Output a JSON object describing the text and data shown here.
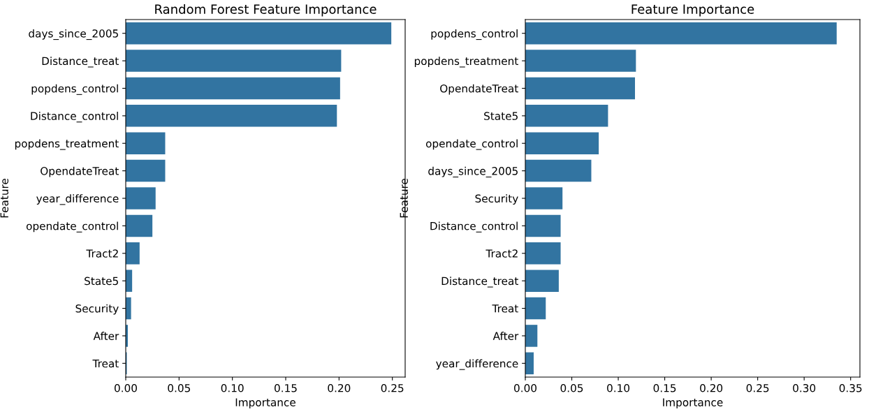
{
  "chart_data": [
    {
      "type": "bar",
      "orientation": "horizontal",
      "title": "Random Forest Feature Importance",
      "xlabel": "Importance",
      "ylabel": "Feature",
      "categories": [
        "days_since_2005",
        "Distance_treat",
        "popdens_control",
        "Distance_control",
        "popdens_treatment",
        "OpendateTreat",
        "year_difference",
        "opendate_control",
        "Tract2",
        "State5",
        "Security",
        "After",
        "Treat"
      ],
      "values": [
        0.249,
        0.202,
        0.201,
        0.198,
        0.037,
        0.037,
        0.028,
        0.025,
        0.013,
        0.006,
        0.005,
        0.002,
        0.001
      ],
      "color": "#3274a1",
      "xlim": [
        0,
        0.262
      ],
      "xticks": [
        {
          "value": 0,
          "label": "0.00"
        },
        0.05,
        {
          "value": 0.1,
          "label": "0.10"
        },
        0.15,
        {
          "value": 0.2,
          "label": "0.20"
        },
        0.25
      ]
    },
    {
      "type": "bar",
      "orientation": "horizontal",
      "title": "Feature Importance",
      "xlabel": "Importance",
      "ylabel": "Feature",
      "categories": [
        "popdens_control",
        "popdens_treatment",
        "OpendateTreat",
        "State5",
        "opendate_control",
        "days_since_2005",
        "Security",
        "Distance_control",
        "Tract2",
        "Distance_treat",
        "Treat",
        "After",
        "year_difference"
      ],
      "values": [
        0.335,
        0.119,
        0.118,
        0.089,
        0.079,
        0.071,
        0.04,
        0.038,
        0.038,
        0.036,
        0.022,
        0.013,
        0.009
      ],
      "color": "#3274a1",
      "xlim": [
        0,
        0.36
      ],
      "xticks": [
        {
          "value": 0,
          "label": "0.00"
        },
        0.05,
        {
          "value": 0.1,
          "label": "0.10"
        },
        0.15,
        {
          "value": 0.2,
          "label": "0.20"
        },
        0.25,
        {
          "value": 0.3,
          "label": "0.30"
        },
        0.35
      ]
    }
  ]
}
